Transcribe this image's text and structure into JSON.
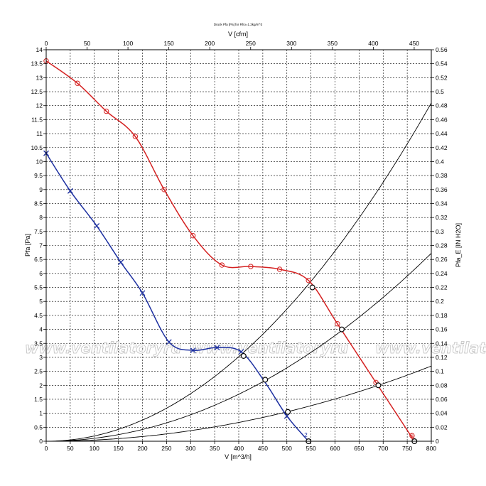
{
  "chart_data": {
    "type": "line",
    "title": "Druck Pfa [Pa] for Rho=1.2kg/m^3",
    "xlabel": "V [m^3/h]",
    "x2label": "V [cfm]",
    "ylabel": "Pfa [Pa]",
    "y2label": "Pfa_E [IN H2O]",
    "xlim": [
      0,
      800
    ],
    "x2lim": [
      0,
      470.9
    ],
    "ylim": [
      0,
      14
    ],
    "y2lim": [
      0,
      0.56
    ],
    "grid": true,
    "x_ticks": [
      "0",
      "50",
      "100",
      "150",
      "200",
      "250",
      "300",
      "350",
      "400",
      "450",
      "500",
      "550",
      "600",
      "650",
      "700",
      "750",
      "800"
    ],
    "x2_ticks": [
      "0",
      "50",
      "100",
      "150",
      "200",
      "250",
      "300",
      "350",
      "400",
      "450"
    ],
    "y_ticks": [
      "0",
      "0.5",
      "1",
      "1.5",
      "2",
      "2.5",
      "3",
      "3.5",
      "4",
      "4.5",
      "5",
      "5.5",
      "6",
      "6.5",
      "7",
      "7.5",
      "8",
      "8.5",
      "9",
      "9.5",
      "10",
      "10.5",
      "11",
      "11.5",
      "12",
      "12.5",
      "13",
      "13.5",
      "14"
    ],
    "y2_ticks": [
      "0",
      "0.02",
      "0.04",
      "0.06",
      "0.08",
      "0.1",
      "0.12",
      "0.14",
      "0.16",
      "0.18",
      "0.2",
      "0.22",
      "0.24",
      "0.26",
      "0.28",
      "0.3",
      "0.32",
      "0.34",
      "0.36",
      "0.38",
      "0.4",
      "0.42",
      "0.44",
      "0.46",
      "0.48",
      "0.5",
      "0.52",
      "0.54",
      "0.56"
    ],
    "series": [
      {
        "color": "#d42020",
        "marker": "circle",
        "end_label": "max",
        "x": [
          0,
          65,
          125,
          185,
          245,
          305,
          365,
          425,
          485,
          545,
          605,
          685,
          765
        ],
        "y": [
          13.6,
          12.8,
          11.8,
          10.9,
          9.0,
          7.35,
          6.3,
          6.25,
          6.15,
          5.75,
          4.2,
          2.1,
          0
        ],
        "markers_x": [
          0,
          65,
          125,
          185,
          245,
          305,
          365,
          425,
          485,
          545,
          605,
          685,
          760
        ],
        "markers_y": [
          13.6,
          12.8,
          11.8,
          10.9,
          9.0,
          7.35,
          6.3,
          6.25,
          6.15,
          5.75,
          4.2,
          2.1,
          0.2
        ]
      },
      {
        "color": "#1c2fa0",
        "marker": "x",
        "end_label": "2",
        "x": [
          0,
          50,
          105,
          155,
          200,
          255,
          305,
          355,
          405,
          455,
          500,
          545
        ],
        "y": [
          10.3,
          8.95,
          7.7,
          6.4,
          5.3,
          3.55,
          3.25,
          3.35,
          3.2,
          2.1,
          0.9,
          0
        ],
        "markers_x": [
          0,
          50,
          105,
          155,
          200,
          255,
          305,
          355,
          405,
          500
        ],
        "markers_y": [
          10.3,
          8.95,
          7.7,
          6.4,
          5.3,
          3.55,
          3.25,
          3.35,
          3.2,
          0.9
        ]
      }
    ],
    "system_curves": [
      {
        "k": 1.89e-05,
        "x_end": 800
      },
      {
        "k": 1.05e-05,
        "x_end": 800
      },
      {
        "k": 4.2e-06,
        "x_end": 800
      }
    ],
    "operating_points": [
      {
        "x": 553,
        "y": 5.5
      },
      {
        "x": 614,
        "y": 4.0
      },
      {
        "x": 690,
        "y": 2.0
      },
      {
        "x": 410,
        "y": 3.05
      },
      {
        "x": 455,
        "y": 2.2
      },
      {
        "x": 502,
        "y": 1.05
      },
      {
        "x": 545,
        "y": 0
      },
      {
        "x": 765,
        "y": 0
      }
    ],
    "watermark": "www.ventilatoryru"
  }
}
